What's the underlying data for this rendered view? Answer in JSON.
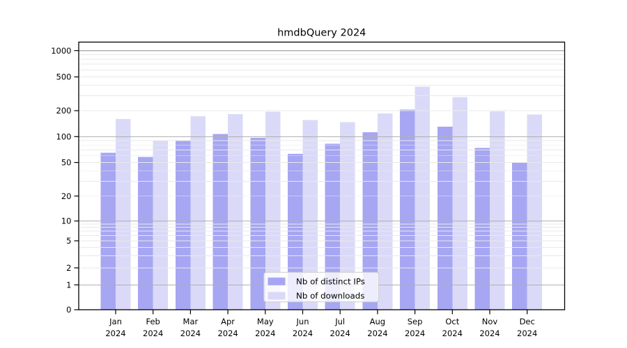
{
  "figure": {
    "title": "hmdbQuery 2024"
  },
  "chart_data": {
    "type": "bar",
    "title": "hmdbQuery 2024",
    "categories": [
      "Jan 2024",
      "Feb 2024",
      "Mar 2024",
      "Apr 2024",
      "May 2024",
      "Jun 2024",
      "Jul 2024",
      "Aug 2024",
      "Sep 2024",
      "Oct 2024",
      "Nov 2024",
      "Dec 2024"
    ],
    "x_tick_line1": [
      "Jan",
      "Feb",
      "Mar",
      "Apr",
      "May",
      "Jun",
      "Jul",
      "Aug",
      "Sep",
      "Oct",
      "Nov",
      "Dec"
    ],
    "x_tick_line2": "2024",
    "series": [
      {
        "name": "Nb of distinct IPs",
        "color": "#a6a6f3",
        "values": [
          65,
          58,
          90,
          107,
          97,
          63,
          83,
          112,
          205,
          130,
          74,
          50
        ]
      },
      {
        "name": "Nb of downloads",
        "color": "#dadaf8",
        "values": [
          160,
          90,
          173,
          183,
          194,
          156,
          147,
          186,
          385,
          290,
          196,
          180
        ]
      }
    ],
    "yscale": "symlog",
    "ylim": [
      0,
      1000
    ],
    "y_tick_values": [
      0,
      1,
      2,
      5,
      10,
      20,
      50,
      100,
      200,
      500,
      1000
    ],
    "y_tick_labels": [
      "0",
      "1",
      "2",
      "5",
      "10",
      "20",
      "50",
      "100",
      "200",
      "500",
      "1000"
    ],
    "grid": true,
    "legend": {
      "position": "lower center",
      "entries": [
        "Nb of distinct IPs",
        "Nb of downloads"
      ]
    },
    "colors": {
      "major_grid": "#b0b0b0",
      "minor_grid": "#e9e9e9",
      "axis": "#000000",
      "background": "#ffffff",
      "legend_border": "#cccccc"
    }
  }
}
